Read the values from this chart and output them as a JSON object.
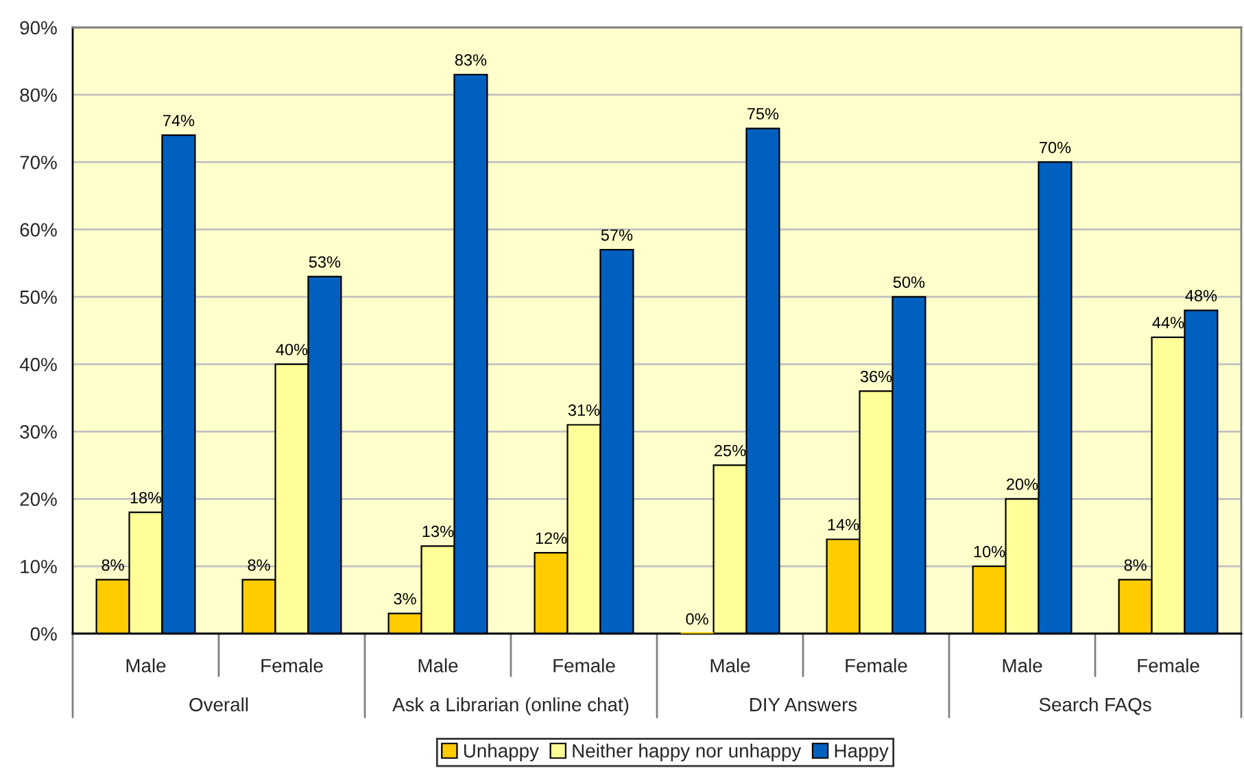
{
  "chart_data": {
    "type": "bar",
    "categories": [
      "Male",
      "Female",
      "Male",
      "Female",
      "Male",
      "Female",
      "Male",
      "Female"
    ],
    "series": [
      {
        "name": "Unhappy",
        "color": "#ffcc00",
        "values": [
          8,
          8,
          3,
          12,
          0,
          14,
          10,
          8
        ],
        "value_labels": [
          "8%",
          "8%",
          "3%",
          "12%",
          "0%",
          "14%",
          "10%",
          "8%"
        ]
      },
      {
        "name": "Neither happy nor unhappy",
        "color": "#ffff99",
        "values": [
          18,
          40,
          13,
          31,
          25,
          36,
          20,
          44
        ],
        "value_labels": [
          "18%",
          "40%",
          "13%",
          "31%",
          "25%",
          "36%",
          "20%",
          "44%"
        ]
      },
      {
        "name": "Happy",
        "color": "#0060c0",
        "values": [
          74,
          53,
          83,
          57,
          75,
          50,
          70,
          48
        ],
        "value_labels": [
          "74%",
          "53%",
          "83%",
          "57%",
          "75%",
          "50%",
          "70%",
          "48%"
        ]
      }
    ],
    "ylim": [
      0,
      90
    ],
    "yticks": [
      {
        "value": 0,
        "label": "0%"
      },
      {
        "value": 10,
        "label": "10%"
      },
      {
        "value": 20,
        "label": "20%"
      },
      {
        "value": 30,
        "label": "30%"
      },
      {
        "value": 40,
        "label": "40%"
      },
      {
        "value": 50,
        "label": "50%"
      },
      {
        "value": 60,
        "label": "60%"
      },
      {
        "value": 70,
        "label": "70%"
      },
      {
        "value": 80,
        "label": "80%"
      },
      {
        "value": 90,
        "label": "90%"
      }
    ],
    "grid": "y",
    "legend": "bottom",
    "annotations": [
      "Overall",
      "Ask a Librarian (online chat)",
      "DIY Answers",
      "Search FAQs"
    ]
  }
}
